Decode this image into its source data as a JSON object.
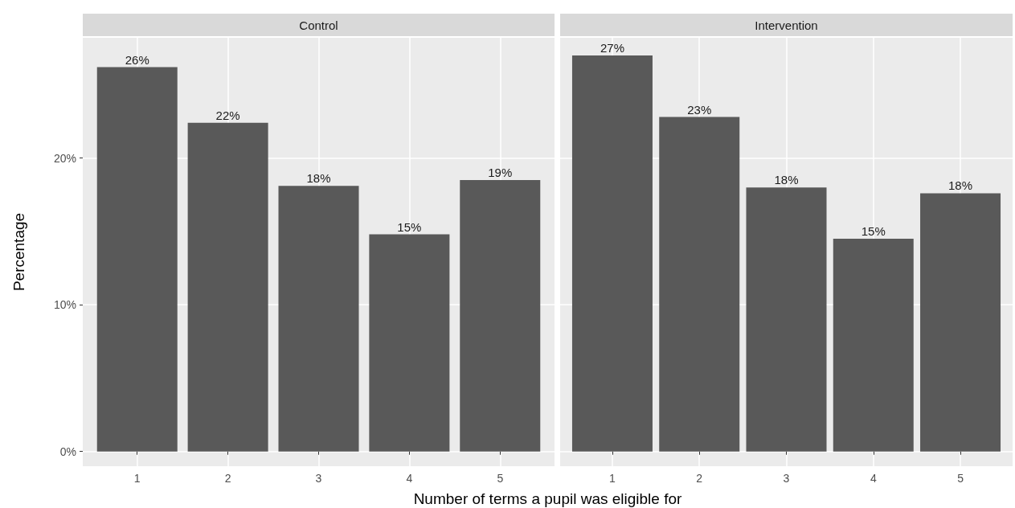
{
  "chart_data": [
    {
      "type": "bar",
      "title": "Control",
      "xlabel": "Number of terms a pupil was eligible for",
      "ylabel": "Percentage",
      "x": [
        1,
        2,
        3,
        4,
        5
      ],
      "values": [
        26.2,
        22.4,
        18.1,
        14.8,
        18.5
      ],
      "value_labels": [
        "26%",
        "22%",
        "18%",
        "15%",
        "19%"
      ],
      "color": "#595959",
      "xlim": [
        0.4,
        5.6
      ],
      "xticks": [
        1,
        2,
        3,
        4,
        5
      ],
      "ylim": [
        -1,
        28.2
      ],
      "yticks": [
        {
          "value": 0,
          "label": "0%"
        },
        {
          "value": 10,
          "label": "10%"
        },
        {
          "value": 20,
          "label": "20%"
        }
      ],
      "grid": true
    },
    {
      "type": "bar",
      "title": "Intervention",
      "x": [
        1,
        2,
        3,
        4,
        5
      ],
      "values": [
        27.0,
        22.8,
        18.0,
        14.5,
        17.6
      ],
      "value_labels": [
        "27%",
        "23%",
        "18%",
        "15%",
        "18%"
      ],
      "color": "#595959",
      "xlim": [
        0.4,
        5.6
      ],
      "xticks": [
        1,
        2,
        3,
        4,
        5
      ],
      "ylim": [
        -1,
        28.2
      ],
      "yticks": [
        0,
        10,
        20
      ],
      "grid": true,
      "tick_labels": "x"
    }
  ]
}
